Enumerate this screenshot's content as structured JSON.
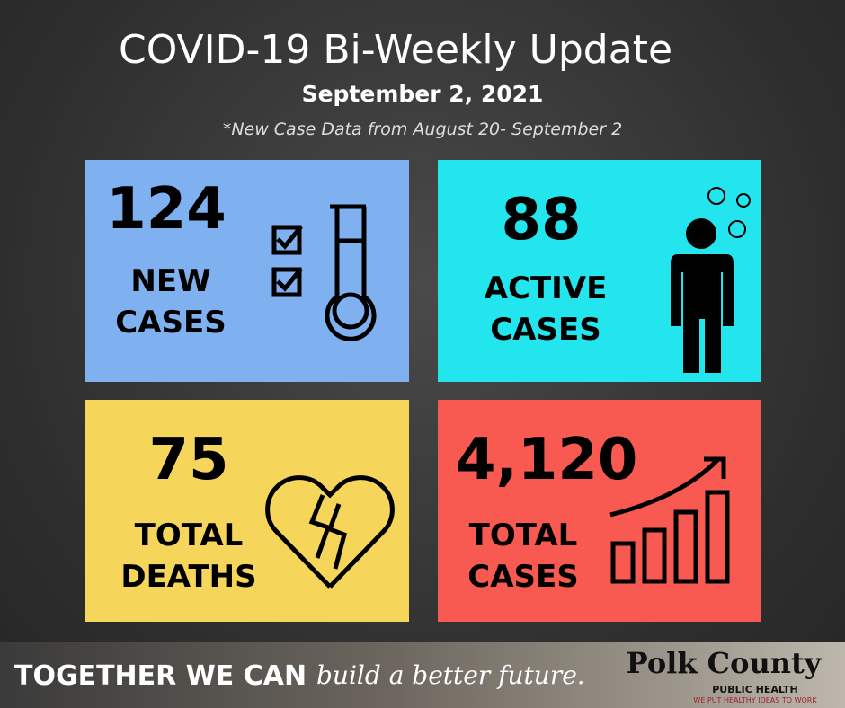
{
  "header": {
    "title": "COVID-19 Bi-Weekly Update",
    "date": "September 2, 2021",
    "note": "*New Case Data from August 20- September 2"
  },
  "cards": [
    {
      "value": "124",
      "label": [
        "NEW",
        "CASES"
      ]
    },
    {
      "value": "88",
      "label": [
        "ACTIVE",
        "CASES"
      ]
    },
    {
      "value": "75",
      "label": [
        "TOTAL",
        "DEATHS"
      ]
    },
    {
      "value": "4,120",
      "label": [
        "TOTAL",
        "CASES"
      ]
    }
  ],
  "footer": {
    "slogan": "TOGETHER WE CAN",
    "script": "build a better future.",
    "logo": {
      "name": "Polk County",
      "unit": "PUBLIC HEALTH",
      "tagline": "WE PUT HEALTHY IDEAS TO WORK"
    }
  }
}
